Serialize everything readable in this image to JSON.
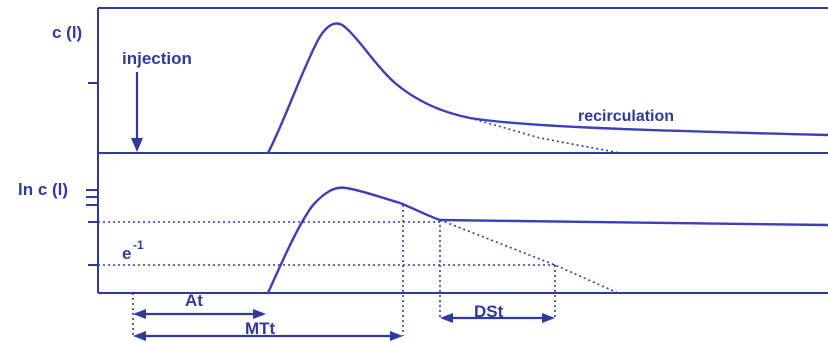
{
  "chart_data": [
    {
      "type": "line",
      "panel": "top",
      "ylabel": "c (l)",
      "annotations": [
        "injection",
        "recirculation"
      ],
      "series": [
        {
          "x": [
            0.265,
            0.285,
            0.31,
            0.33,
            0.34,
            0.355,
            0.38,
            0.41,
            0.44,
            0.47,
            0.5,
            0.55,
            0.6,
            0.7,
            0.8,
            0.9,
            1.0
          ],
          "y": [
            0.0,
            0.22,
            0.62,
            0.92,
            0.98,
            0.93,
            0.74,
            0.52,
            0.38,
            0.3,
            0.25,
            0.2,
            0.17,
            0.14,
            0.12,
            0.11,
            0.1
          ]
        },
        {
          "style": "dotted",
          "x": [
            0.44,
            0.5,
            0.55,
            0.6
          ],
          "y": [
            0.38,
            0.18,
            0.07,
            0.0
          ]
        }
      ]
    },
    {
      "type": "line",
      "panel": "bottom",
      "ylabel": "ln c (l)",
      "annotations": [
        "e",
        "-1",
        "At",
        "MTt",
        "DSt"
      ],
      "series": [
        {
          "x": [
            0.27,
            0.29,
            0.31,
            0.33,
            0.345,
            0.37,
            0.4,
            0.43,
            0.44,
            0.6,
            0.8,
            1.0
          ],
          "y": [
            0.0,
            0.38,
            0.68,
            0.85,
            0.88,
            0.85,
            0.79,
            0.72,
            0.7,
            0.7,
            0.69,
            0.68
          ],
          "ylabels_positioned": false
        },
        {
          "style": "dotted",
          "x": [
            0.44,
            0.55,
            0.615
          ],
          "y": [
            0.7,
            0.22,
            0.0
          ]
        }
      ]
    }
  ]
}
